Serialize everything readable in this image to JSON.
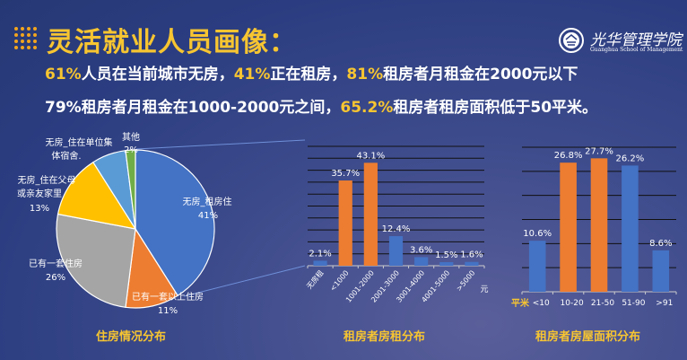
{
  "title": "灵活就业人员画像：",
  "logo": {
    "cn": "光华管理学院",
    "en": "Guanghua School of Management"
  },
  "summary": {
    "line1": [
      {
        "t": "61%",
        "hl": true
      },
      {
        "t": "人员在当前城市无房，",
        "hl": false
      },
      {
        "t": "41%",
        "hl": true
      },
      {
        "t": "正在租房，",
        "hl": false
      },
      {
        "t": "81%",
        "hl": true
      },
      {
        "t": "租房者月租金在2000元以下",
        "hl": false
      }
    ],
    "line2": [
      {
        "t": "79%",
        "hl": false
      },
      {
        "t": "租房者月租金在1000-2000元之间，",
        "hl": false
      },
      {
        "t": "65.2%",
        "hl": true
      },
      {
        "t": "租房者租房面积低于50平米。",
        "hl": false
      }
    ]
  },
  "colors": {
    "accent": "#f7c531",
    "blue": "#4472c4",
    "orange": "#ed7d31",
    "gray": "#a5a5a5",
    "yellow": "#ffc000",
    "lightblue": "#5b9bd5",
    "green": "#70ad47"
  },
  "chart_data": [
    {
      "type": "pie",
      "caption": "住房情况分布",
      "start": "12 o'clock clockwise",
      "slices": [
        {
          "label": "无房_租房住",
          "value": 41,
          "value_label": "41%",
          "color": "#4472c4"
        },
        {
          "label": "已有一套以上住房",
          "value": 11,
          "value_label": "11%",
          "color": "#ed7d31"
        },
        {
          "label": "已有一套住房",
          "value": 26,
          "value_label": "26%",
          "color": "#a5a5a5"
        },
        {
          "label": "无房_住在父母或亲友家里",
          "value": 13,
          "value_label": "13%",
          "color": "#ffc000"
        },
        {
          "label": "无房_住在单位集体宿舍.",
          "value": 7,
          "value_label": "",
          "color": "#5b9bd5"
        },
        {
          "label": "其他",
          "value": 2,
          "value_label": "2%",
          "color": "#70ad47"
        }
      ]
    },
    {
      "type": "bar",
      "caption": "租房者房租分布",
      "xunit": "元",
      "ylim": [
        0,
        50
      ],
      "grid": true,
      "categories": [
        "无房租",
        "<1000",
        "1001-2000",
        "2001-3000",
        "3001-4000",
        "4001-5000",
        ">5000"
      ],
      "values": [
        2.1,
        35.7,
        43.1,
        12.4,
        3.6,
        1.5,
        1.6
      ],
      "labels": [
        "2.1%",
        "35.7%",
        "43.1%",
        "12.4%",
        "3.6%",
        "1.5%",
        "1.6%"
      ],
      "colors": [
        "#4472c4",
        "#ed7d31",
        "#ed7d31",
        "#4472c4",
        "#4472c4",
        "#4472c4",
        "#4472c4"
      ]
    },
    {
      "type": "bar",
      "caption": "租房者房屋面积分布",
      "xunit": "平米",
      "ylim": [
        0,
        30
      ],
      "grid": true,
      "categories": [
        "<10",
        "10-20",
        "21-50",
        "51-90",
        ">91"
      ],
      "values": [
        10.6,
        26.8,
        27.7,
        26.2,
        8.6
      ],
      "labels": [
        "10.6%",
        "26.8%",
        "27.7%",
        "26.2%",
        "8.6%"
      ],
      "colors": [
        "#4472c4",
        "#ed7d31",
        "#ed7d31",
        "#4472c4",
        "#4472c4"
      ]
    }
  ]
}
